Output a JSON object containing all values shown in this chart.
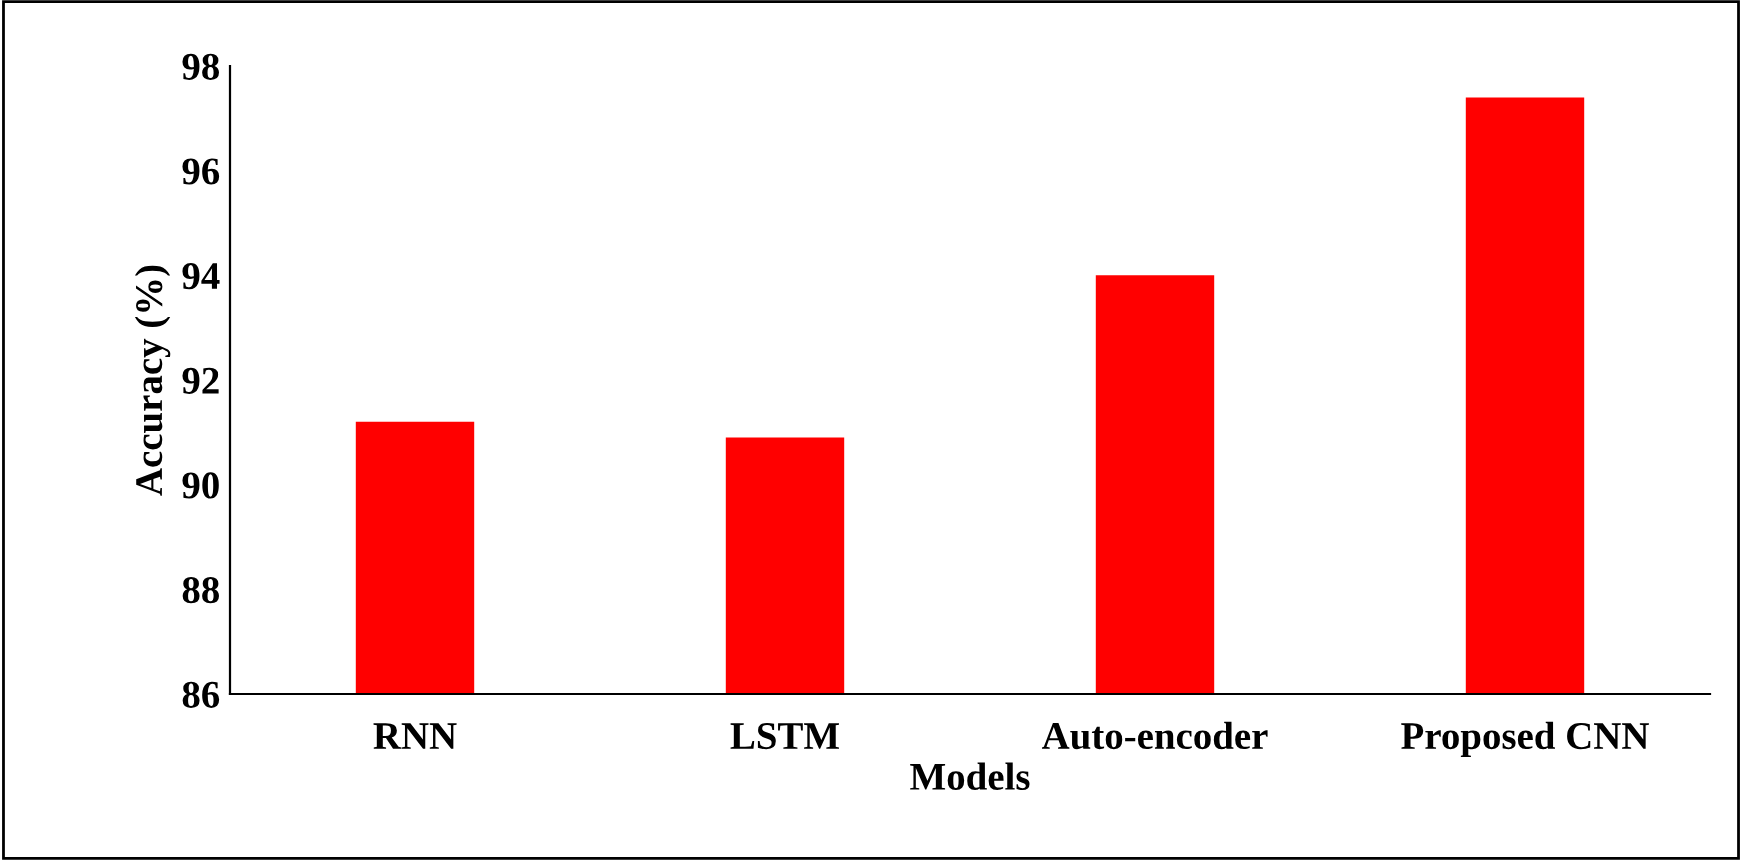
{
  "chart_data": {
    "type": "bar",
    "xlabel": "Models",
    "ylabel": "Accuracy (%)",
    "categories": [
      "RNN",
      "LSTM",
      "Auto-encoder",
      "Proposed CNN"
    ],
    "values": [
      91.2,
      90.9,
      94.0,
      97.4
    ],
    "color": "#ff0000",
    "ylim": [
      86,
      98
    ],
    "yticks": [
      86,
      88,
      90,
      92,
      94,
      96,
      98
    ],
    "grid": false
  }
}
